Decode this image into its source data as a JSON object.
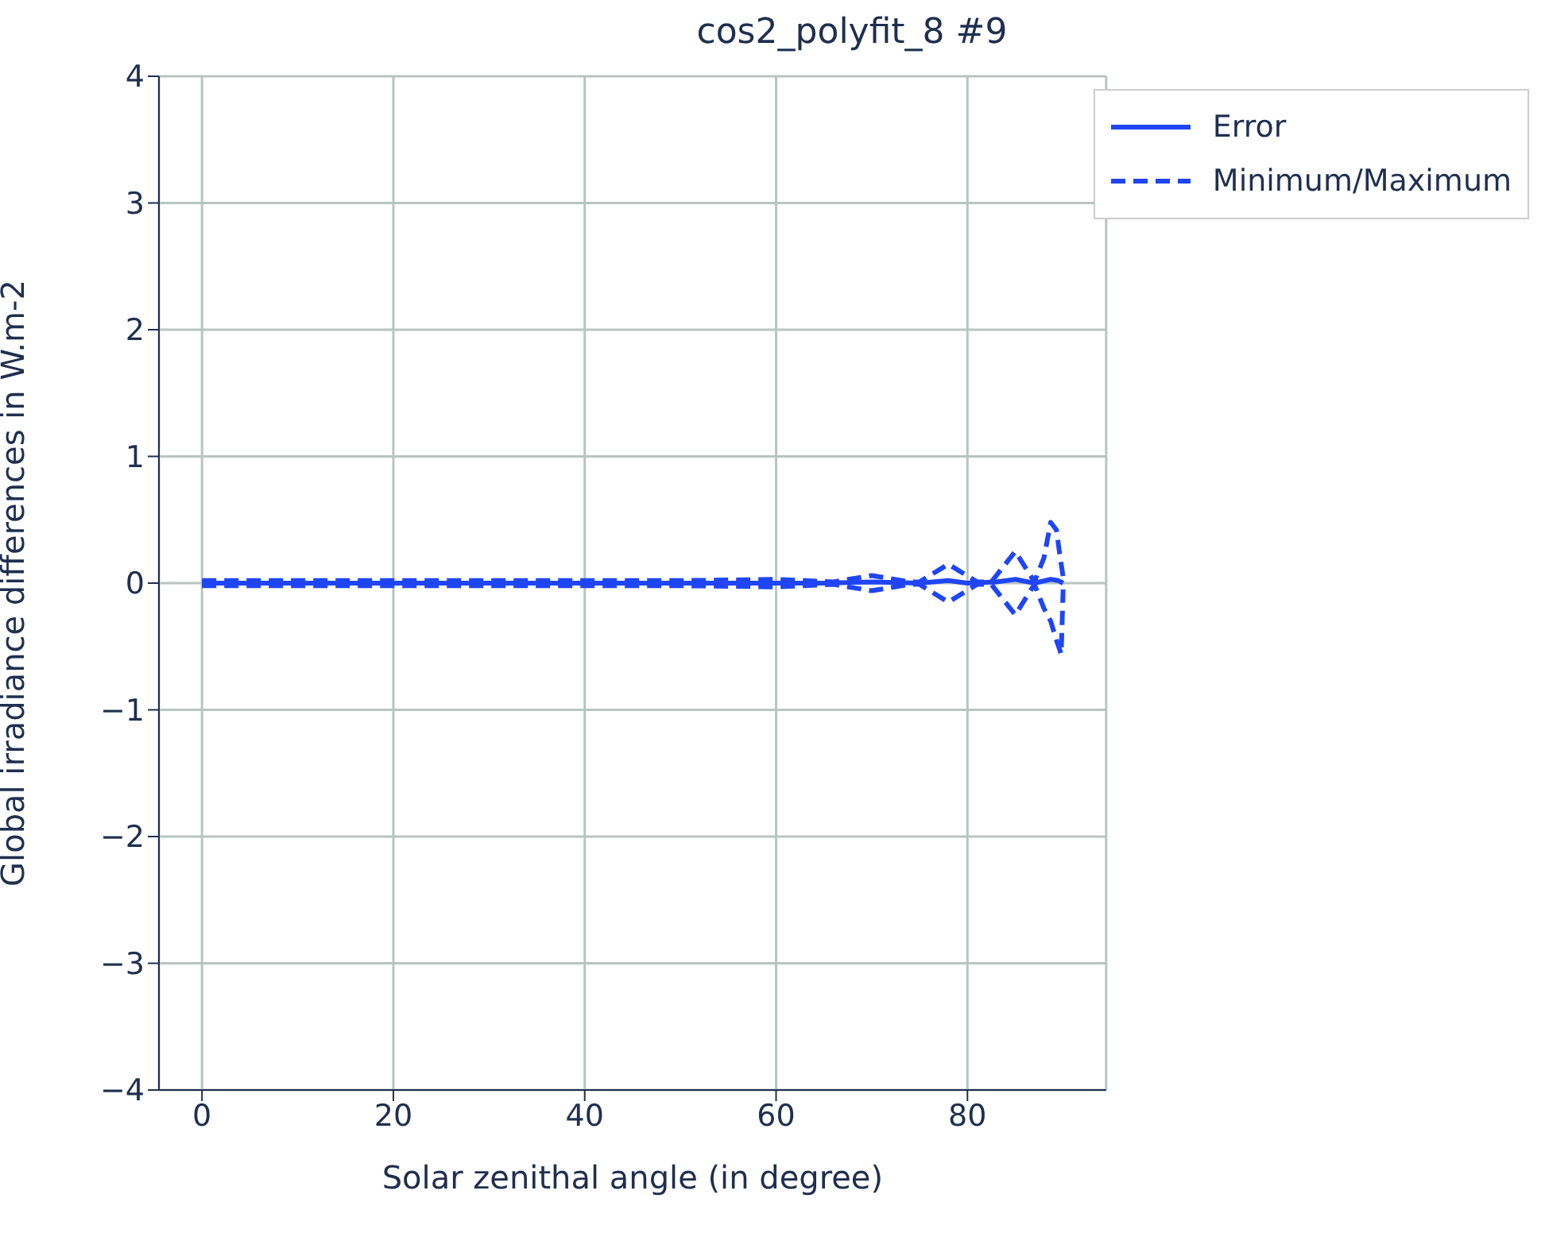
{
  "chart_data": {
    "type": "line",
    "title": "cos2_polyfit_8 #9",
    "xlabel": "Solar zenithal angle (in degree)",
    "ylabel": "Global irradiance differences in W.m-2",
    "xlim": [
      -4.5,
      94.5
    ],
    "xticks": [
      0,
      20,
      40,
      60,
      80
    ],
    "ylim": [
      -4,
      4
    ],
    "yticks": [
      -4,
      -3,
      -2,
      -1,
      0,
      1,
      2,
      3,
      4
    ],
    "grid": true,
    "legend": "top right",
    "series": [
      {
        "name": "Error",
        "color": "#1f45f5",
        "line_style": "solid",
        "x": [
          0,
          10,
          20,
          30,
          40,
          50,
          60,
          65,
          70,
          75,
          78,
          80,
          83,
          85,
          87,
          88.7,
          89.5,
          90
        ],
        "values": [
          0,
          0,
          0,
          0,
          0,
          0,
          0,
          0,
          0.01,
          0,
          0.02,
          0,
          0.01,
          0.03,
          0,
          0.03,
          0.02,
          0
        ]
      },
      {
        "name": "Minimum/Maximum",
        "color": "#1f45f5",
        "line_style": "dashed",
        "x": [
          0,
          10,
          20,
          30,
          40,
          50,
          60,
          63,
          66,
          70,
          74,
          75,
          78,
          81,
          82.5,
          85,
          87,
          88,
          88.7,
          89.3,
          89.7,
          90
        ],
        "values": [
          0.02,
          0.02,
          0.02,
          0.02,
          0.02,
          0.02,
          0.03,
          0.02,
          0.01,
          0.06,
          0.01,
          0.01,
          0.15,
          0.01,
          0.01,
          0.25,
          0.01,
          0.2,
          0.48,
          0.42,
          0.2,
          0.05
        ]
      },
      {
        "color": "#1f45f5",
        "line_style": "dashed",
        "x": [
          0,
          10,
          20,
          30,
          40,
          50,
          60,
          63,
          66,
          70,
          74,
          75,
          78,
          81,
          82.5,
          85,
          87,
          88,
          88.7,
          89.3,
          89.8,
          90
        ],
        "values": [
          -0.02,
          -0.02,
          -0.02,
          -0.02,
          -0.02,
          -0.02,
          -0.03,
          -0.02,
          -0.01,
          -0.06,
          -0.01,
          -0.01,
          -0.15,
          -0.01,
          -0.01,
          -0.25,
          -0.01,
          -0.2,
          -0.3,
          -0.45,
          -0.56,
          -0.05
        ]
      }
    ]
  }
}
